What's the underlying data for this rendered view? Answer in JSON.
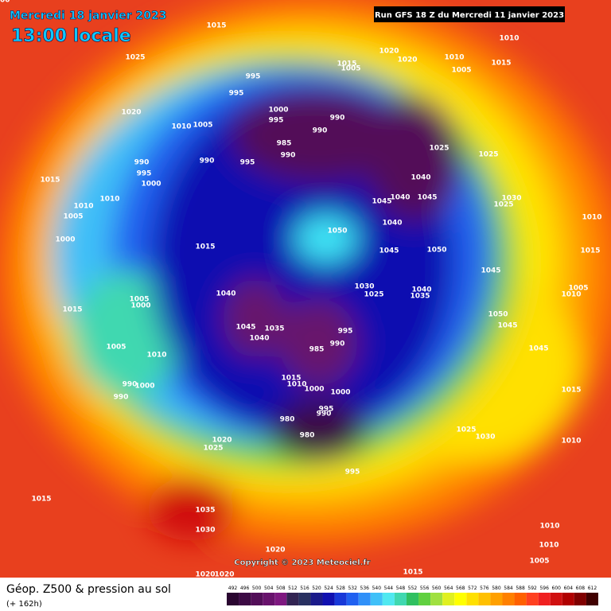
{
  "header": {
    "valid_date": "Mercredi 18 janvier 2023",
    "local_time": "13:00 locale",
    "run": "Run GFS 18 Z du Mercredi 11 janvier 2023"
  },
  "footer": {
    "title": "Géop. Z500 & pression au sol",
    "lead": "(+ 162h)",
    "copyright": "Copyright © 2023 Meteociel.fr"
  },
  "legend": {
    "ticks": [
      492,
      496,
      500,
      504,
      508,
      512,
      516,
      520,
      524,
      528,
      532,
      536,
      540,
      544,
      548,
      552,
      556,
      560,
      564,
      568,
      572,
      576,
      580,
      584,
      588,
      592,
      596,
      600,
      604,
      608,
      612
    ],
    "colors": [
      "#2a0630",
      "#3c0a44",
      "#520e58",
      "#68126c",
      "#7e1880",
      "#322452",
      "#283060",
      "#1a1a8a",
      "#1010b0",
      "#1838d8",
      "#2060f0",
      "#3090f8",
      "#40c0f8",
      "#50e8f0",
      "#40d8b0",
      "#30c060",
      "#60d040",
      "#a0e040",
      "#e0f020",
      "#ffff00",
      "#ffe000",
      "#ffc000",
      "#ffa000",
      "#ff8000",
      "#ff6000",
      "#ff4020",
      "#f02020",
      "#d01010",
      "#b00000",
      "#800000",
      "#400000"
    ]
  },
  "isobar_labels": [
    "1015",
    "1025",
    "1020",
    "1010",
    "1005",
    "995",
    "995",
    "1000",
    "995",
    "990",
    "990",
    "985",
    "990",
    "995",
    "990",
    "990",
    "995",
    "1000",
    "1015",
    "1010",
    "1010",
    "1005",
    "1000",
    "1015",
    "1050",
    "1045",
    "1040",
    "1045",
    "1040",
    "1025",
    "1025",
    "1040",
    "1045",
    "1050",
    "1030",
    "1025",
    "1010",
    "1015",
    "1005",
    "1010",
    "1045",
    "1050",
    "1045",
    "1045",
    "1015",
    "1010",
    "1030",
    "1025",
    "1040",
    "1035",
    "1040",
    "1045",
    "1040",
    "1035",
    "995",
    "990",
    "985",
    "1015",
    "1010",
    "1000",
    "1000",
    "995",
    "990",
    "980",
    "980",
    "995",
    "1025",
    "1030",
    "1005",
    "1000",
    "1015",
    "1005",
    "1010",
    "990",
    "1000",
    "990",
    "1020",
    "1025",
    "1015",
    "1035",
    "1030",
    "1020",
    "1020",
    "1020",
    "1015",
    "1005",
    "1010",
    "1010",
    "1020",
    "1020",
    "1010",
    "1005",
    "1010",
    "1015",
    "1015",
    "1005",
    "1000"
  ]
}
